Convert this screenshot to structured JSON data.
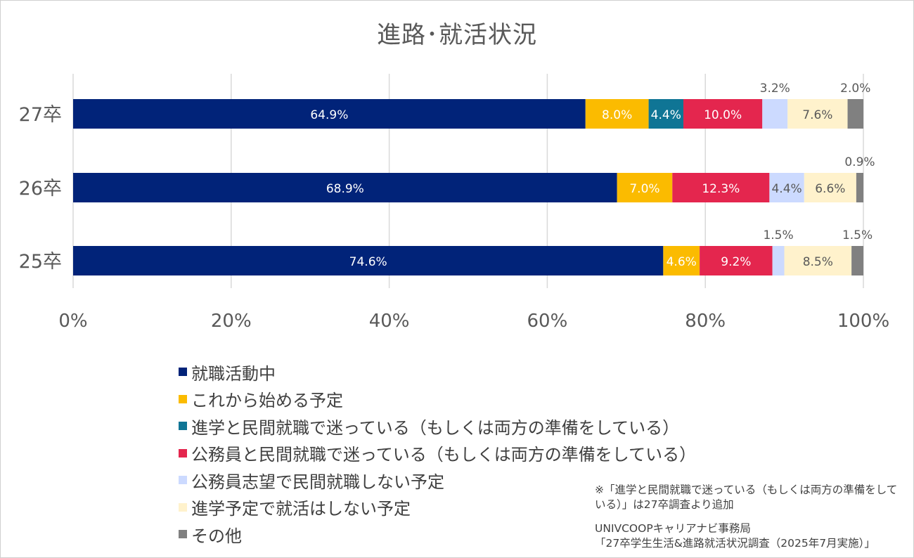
{
  "chart_data": {
    "type": "bar",
    "orientation": "horizontal",
    "stacked": true,
    "title": "進路･就活状況",
    "categories": [
      "27卒",
      "26卒",
      "25卒"
    ],
    "xlim": [
      0,
      100
    ],
    "xticks": [
      "0%",
      "20%",
      "40%",
      "60%",
      "80%",
      "100%"
    ],
    "grid": true,
    "legend_position": "bottom-left",
    "series": [
      {
        "name": "就職活動中",
        "color": "#012379",
        "values": [
          64.9,
          68.9,
          74.6
        ],
        "labels": [
          "64.9%",
          "68.9%",
          "74.6%"
        ]
      },
      {
        "name": "これから始める予定",
        "color": "#fbbb00",
        "values": [
          8.0,
          7.0,
          4.6
        ],
        "labels": [
          "8.0%",
          "7.0%",
          "4.6%"
        ]
      },
      {
        "name": "進学と民間就職で迷っている（もしくは両方の準備をしている）",
        "color": "#0f7595",
        "values": [
          4.4,
          0,
          0
        ],
        "labels": [
          "4.4%",
          "",
          ""
        ]
      },
      {
        "name": "公務員と民間就職で迷っている（もしくは両方の準備をしている）",
        "color": "#e4264e",
        "values": [
          10.0,
          12.3,
          9.2
        ],
        "labels": [
          "10.0%",
          "12.3%",
          "9.2%"
        ]
      },
      {
        "name": "公務員志望で民間就職しない予定",
        "color": "#ccdaff",
        "values": [
          3.2,
          4.4,
          1.5
        ],
        "labels": [
          "3.2%",
          "4.4%",
          "1.5%"
        ]
      },
      {
        "name": "進学予定で就活はしない予定",
        "color": "#fff2cc",
        "values": [
          7.6,
          6.6,
          8.5
        ],
        "labels": [
          "7.6%",
          "6.6%",
          "8.5%"
        ]
      },
      {
        "name": "その他",
        "color": "#808080",
        "values": [
          2.0,
          0.9,
          1.5
        ],
        "labels": [
          "2.0%",
          "0.9%",
          "1.5%"
        ]
      }
    ]
  },
  "note": "※「進学と民間就職で迷っている（もしくは両方の準備をしている）」は27卒調査より追加",
  "source_line1": "UNIVCOOPキャリアナビ事務局",
  "source_line2": "「27卒学生生活&進路就活状況調査（2025年7月実施）」"
}
